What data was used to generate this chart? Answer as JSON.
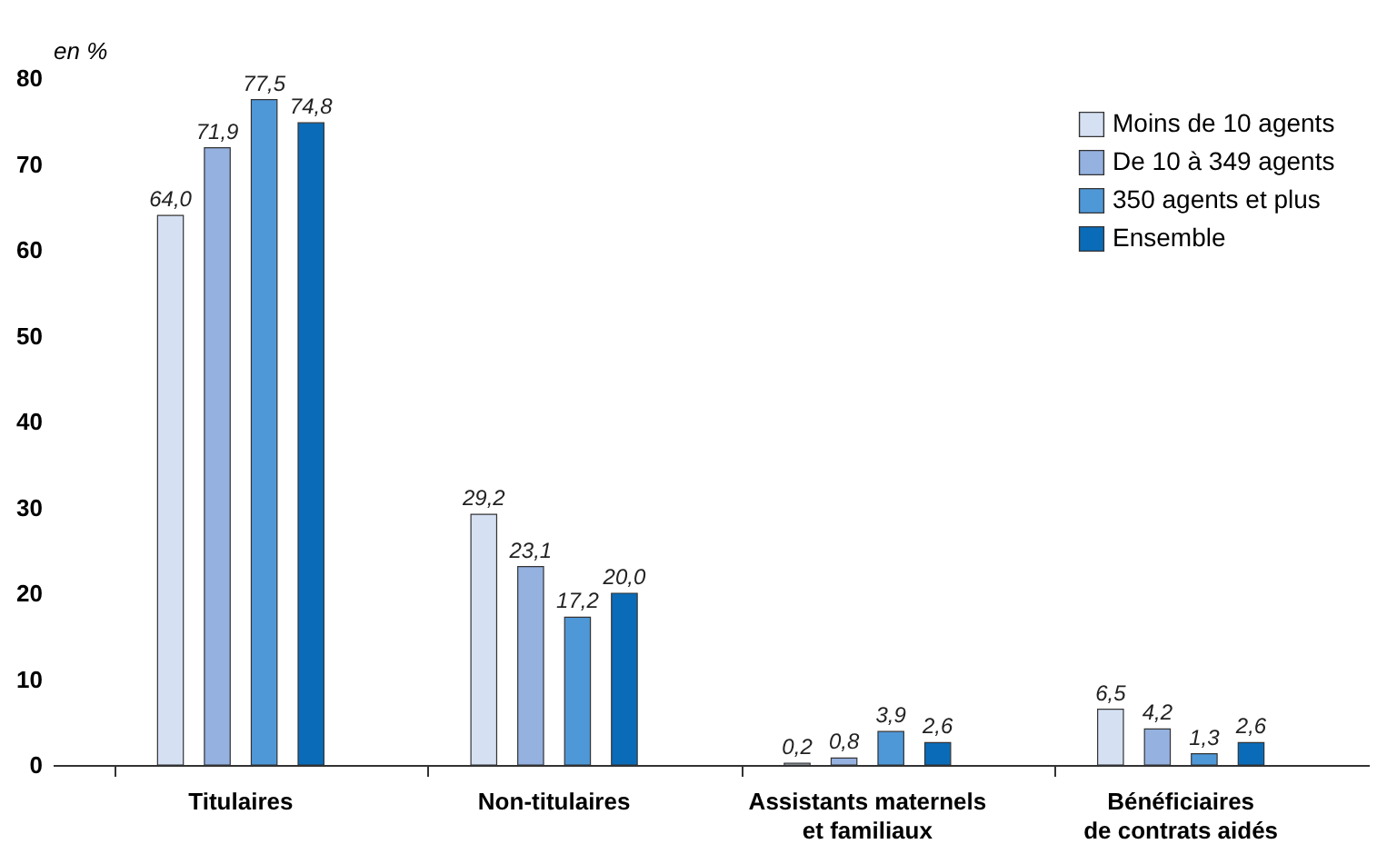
{
  "chart_data": {
    "type": "bar",
    "ylabel": "en %",
    "categories": [
      "Titulaires",
      "Non-titulaires",
      "Assistants maternels\net familiaux",
      "Bénéficiaires\nde contrats aidés"
    ],
    "series": [
      {
        "name": "Moins de 10 agents",
        "color": "#d5e0f3",
        "values": [
          64.0,
          29.2,
          0.2,
          6.5
        ],
        "value_labels": [
          "64,0",
          "29,2",
          "0,2",
          "6,5"
        ]
      },
      {
        "name": "De 10 à 349 agents",
        "color": "#94b1e0",
        "values": [
          71.9,
          23.1,
          0.8,
          4.2
        ],
        "value_labels": [
          "71,9",
          "23,1",
          "0,8",
          "4,2"
        ]
      },
      {
        "name": "350 agents et plus",
        "color": "#4f98d8",
        "values": [
          77.5,
          17.2,
          3.9,
          1.3
        ],
        "value_labels": [
          "77,5",
          "17,2",
          "3,9",
          "1,3"
        ]
      },
      {
        "name": "Ensemble",
        "color": "#0a6cb8",
        "values": [
          74.8,
          20.0,
          2.6,
          2.6
        ],
        "value_labels": [
          "74,8",
          "20,0",
          "2,6",
          "2,6"
        ]
      }
    ],
    "ylim": [
      0,
      80
    ],
    "yticks": [
      0,
      10,
      20,
      30,
      40,
      50,
      60,
      70,
      80
    ],
    "grid": false,
    "legend": "top right"
  }
}
